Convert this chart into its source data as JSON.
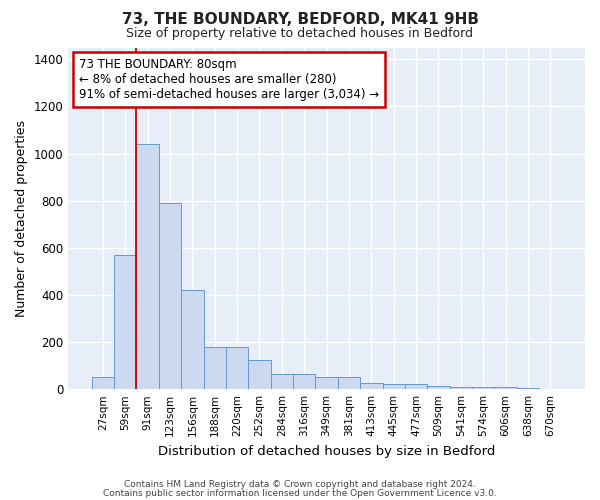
{
  "title": "73, THE BOUNDARY, BEDFORD, MK41 9HB",
  "subtitle": "Size of property relative to detached houses in Bedford",
  "xlabel": "Distribution of detached houses by size in Bedford",
  "ylabel": "Number of detached properties",
  "bar_labels": [
    "27sqm",
    "59sqm",
    "91sqm",
    "123sqm",
    "156sqm",
    "188sqm",
    "220sqm",
    "252sqm",
    "284sqm",
    "316sqm",
    "349sqm",
    "381sqm",
    "413sqm",
    "445sqm",
    "477sqm",
    "509sqm",
    "541sqm",
    "574sqm",
    "606sqm",
    "638sqm",
    "670sqm"
  ],
  "bar_heights": [
    50,
    570,
    1040,
    790,
    420,
    180,
    180,
    125,
    65,
    65,
    50,
    50,
    25,
    20,
    20,
    15,
    10,
    10,
    10,
    5,
    0
  ],
  "bar_color": "#ccd9f0",
  "bar_edge_color": "#6699cc",
  "bar_width": 1.0,
  "vline_x": 1.5,
  "vline_color": "#cc0000",
  "ylim": [
    0,
    1450
  ],
  "yticks": [
    0,
    200,
    400,
    600,
    800,
    1000,
    1200,
    1400
  ],
  "annotation_text": "73 THE BOUNDARY: 80sqm\n← 8% of detached houses are smaller (280)\n91% of semi-detached houses are larger (3,034) →",
  "annotation_box_color": "#ffffff",
  "annotation_box_edge": "#cc0000",
  "fig_bg_color": "#ffffff",
  "plot_bg_color": "#e8eef8",
  "grid_color": "#ffffff",
  "footer_line1": "Contains HM Land Registry data © Crown copyright and database right 2024.",
  "footer_line2": "Contains public sector information licensed under the Open Government Licence v3.0."
}
